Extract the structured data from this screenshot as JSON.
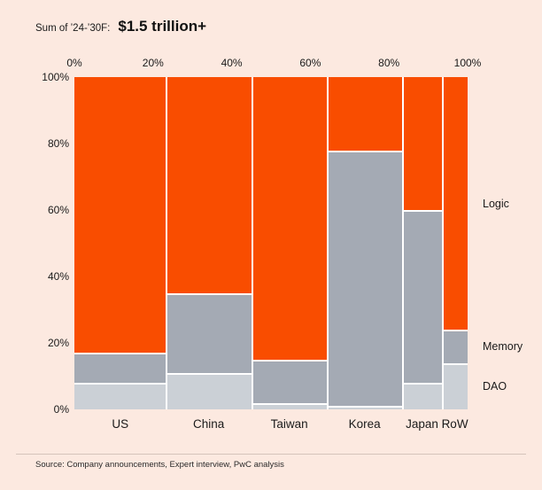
{
  "header": {
    "prefix": "Sum of ’24-’30F:",
    "value": "$1.5 trillion+"
  },
  "chart_data": {
    "type": "bar",
    "subtype": "marimekko-100pct-stacked-variable-width",
    "title": "Sum of ’24-’30F: $1.5 trillion+",
    "categories": [
      "US",
      "China",
      "Taiwan",
      "Korea",
      "Japan",
      "RoW"
    ],
    "column_widths_pct": [
      23.3,
      21.7,
      19.3,
      19.0,
      10.2,
      6.5
    ],
    "series": [
      {
        "name": "Logic",
        "color": "#F94D00",
        "values": [
          83,
          65,
          85,
          22,
          40,
          76
        ]
      },
      {
        "name": "Memory",
        "color": "#A4AAB4",
        "values": [
          9,
          24,
          13,
          77,
          52,
          10
        ]
      },
      {
        "name": "DAO",
        "color": "#CBD0D6",
        "values": [
          8,
          11,
          2,
          1,
          8,
          14
        ]
      }
    ],
    "stack_order_top_to_bottom": [
      "Logic",
      "Memory",
      "DAO"
    ],
    "x_axis_position": "top",
    "x_axis_ticks": [
      "0%",
      "20%",
      "40%",
      "60%",
      "80%",
      "100%"
    ],
    "y_axis_ticks_top_to_bottom": [
      "100%",
      "80%",
      "60%",
      "40%",
      "20%",
      "0%"
    ],
    "y_range": [
      0,
      100
    ],
    "grid": false,
    "legend_position": "right",
    "legend_labels": [
      "Logic",
      "Memory",
      "DAO"
    ]
  },
  "footer": {
    "source": "Source: Company announcements, Expert interview, PwC analysis"
  },
  "colors": {
    "background": "#FCE9E0",
    "segment_gap": "#FFFFFF",
    "text": "#1A1A1A",
    "logic": "#F94D00",
    "memory": "#A4AAB4",
    "dao": "#CBD0D6"
  }
}
